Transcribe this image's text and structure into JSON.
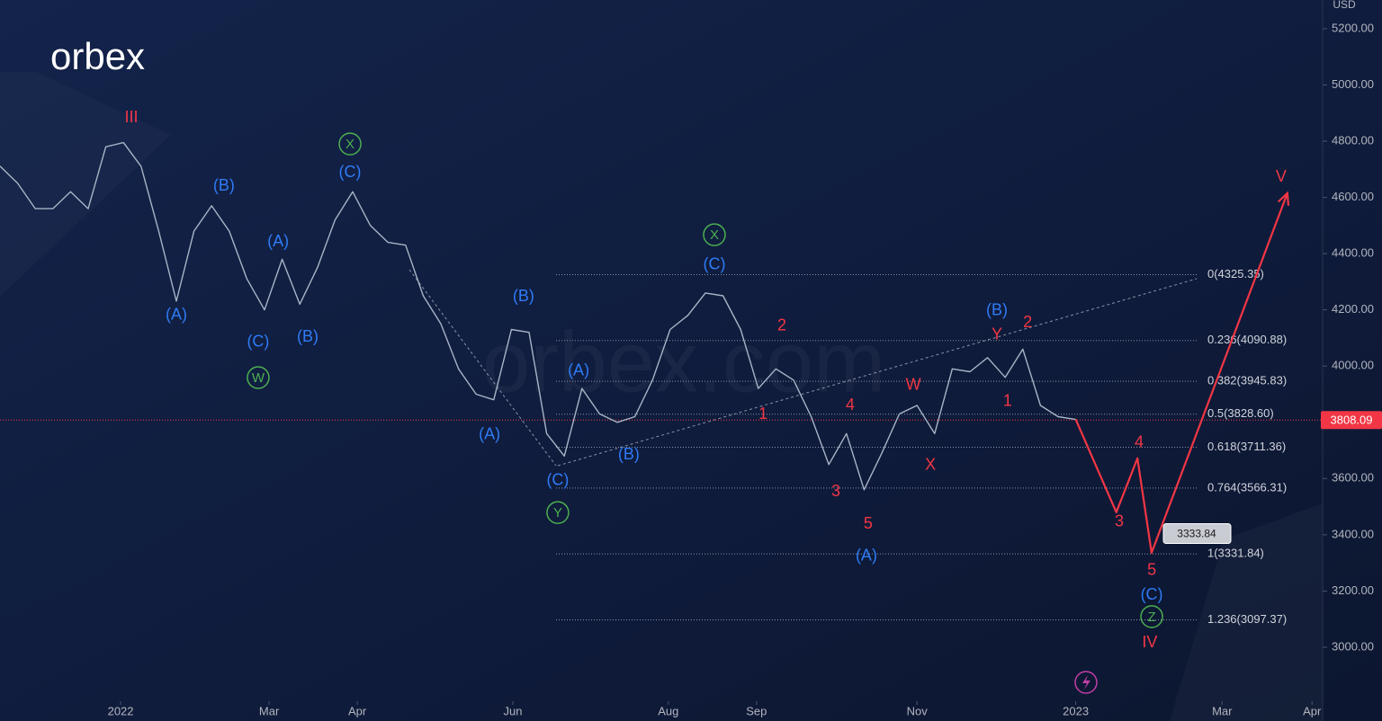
{
  "chart_data": {
    "type": "line",
    "logo": "orbex",
    "watermark": "orbex.com",
    "currency": "USD",
    "xlim": [
      0,
      75
    ],
    "ylim": [
      2808,
      5302
    ],
    "xticks": [
      {
        "value": 6.84,
        "label": "2022"
      },
      {
        "value": 15.26,
        "label": "Mar"
      },
      {
        "value": 20.26,
        "label": "Apr"
      },
      {
        "value": 29.08,
        "label": "Jun"
      },
      {
        "value": 37.9,
        "label": "Aug"
      },
      {
        "value": 42.9,
        "label": "Sep"
      },
      {
        "value": 52.0,
        "label": "Nov"
      },
      {
        "value": 61.0,
        "label": "2023"
      },
      {
        "value": 69.3,
        "label": "Mar"
      },
      {
        "value": 74.4,
        "label": "Apr"
      }
    ],
    "yticks": [
      {
        "value": 3000,
        "label": "3000.00"
      },
      {
        "value": 3200,
        "label": "3200.00"
      },
      {
        "value": 3400,
        "label": "3400.00"
      },
      {
        "value": 3600,
        "label": "3600.00"
      },
      {
        "value": 3800,
        "label": "3800.00"
      },
      {
        "value": 4000,
        "label": "4000.00"
      },
      {
        "value": 4200,
        "label": "4200.00"
      },
      {
        "value": 4400,
        "label": "4400.00"
      },
      {
        "value": 4600,
        "label": "4600.00"
      },
      {
        "value": 4800,
        "label": "4800.00"
      },
      {
        "value": 5000,
        "label": "5000.00"
      },
      {
        "value": 5200,
        "label": "5200.00"
      }
    ],
    "series": [
      {
        "color": "#a9b4c6",
        "x": [
          0,
          1,
          2,
          3,
          4,
          5,
          6,
          7,
          8,
          9,
          10,
          11,
          12,
          13,
          14,
          15,
          16,
          17,
          18,
          19,
          20,
          21,
          22,
          23,
          24,
          25,
          26,
          27,
          28,
          29,
          30,
          31,
          32,
          33,
          34,
          35,
          36,
          37,
          38,
          39,
          40,
          41,
          42,
          43,
          44,
          45,
          46,
          47,
          48,
          49,
          50,
          51,
          52,
          53,
          54,
          55,
          56,
          57,
          58,
          59,
          60,
          61
        ],
        "values": [
          4711,
          4650,
          4560,
          4560,
          4620,
          4560,
          4780,
          4795,
          4710,
          4480,
          4231,
          4480,
          4570,
          4480,
          4310,
          4200,
          4380,
          4220,
          4350,
          4520,
          4620,
          4500,
          4440,
          4430,
          4250,
          4150,
          3990,
          3900,
          3880,
          4130,
          4120,
          3760,
          3680,
          3920,
          3830,
          3800,
          3820,
          3950,
          4130,
          4180,
          4260,
          4250,
          4130,
          3920,
          3990,
          3950,
          3820,
          3650,
          3760,
          3560,
          3690,
          3830,
          3860,
          3760,
          3990,
          3980,
          4030,
          3960,
          4060,
          3860,
          3820,
          3810
        ]
      },
      {
        "color": "#f23645",
        "x": [
          61,
          63.3,
          64.5,
          65.3,
          73
        ],
        "values": [
          3810,
          3480,
          3672,
          3336,
          4615
        ]
      }
    ],
    "current_price": {
      "value": 3808.09,
      "label": "3808.09",
      "color": "#f23645"
    },
    "price_label": {
      "value": 3333.84,
      "label": "3333.84"
    },
    "fib_levels": [
      {
        "value": 4325.35,
        "label": "0(4325.35)"
      },
      {
        "value": 4090.88,
        "label": "0.236(4090.88)"
      },
      {
        "value": 3945.83,
        "label": "0.382(3945.83)"
      },
      {
        "value": 3828.6,
        "label": "0.5(3828.60)"
      },
      {
        "value": 3711.36,
        "label": "0.618(3711.36)"
      },
      {
        "value": 3566.31,
        "label": "0.764(3566.31)"
      },
      {
        "value": 3331.84,
        "label": "1(3331.84)"
      },
      {
        "value": 3097.37,
        "label": "1.236(3097.37)"
      }
    ],
    "annotations": [
      {
        "text": "III",
        "x": 7.45,
        "y": 4886,
        "color": "#f23645"
      },
      {
        "text": "(B)",
        "x": 12.7,
        "y": 4643,
        "color": "#2f7bf5"
      },
      {
        "text": "(A)",
        "x": 10.0,
        "y": 4183,
        "color": "#2f7bf5"
      },
      {
        "text": "(A)",
        "x": 15.77,
        "y": 4445,
        "color": "#2f7bf5"
      },
      {
        "text": "(C)",
        "x": 14.64,
        "y": 4087,
        "color": "#2f7bf5"
      },
      {
        "text": "(B)",
        "x": 17.45,
        "y": 4106,
        "color": "#2f7bf5"
      },
      {
        "text": "W",
        "x": 14.64,
        "y": 3959,
        "color": "#4caf50",
        "circle": true
      },
      {
        "text": "X",
        "x": 19.85,
        "y": 4790,
        "color": "#4caf50",
        "circle": true
      },
      {
        "text": "(C)",
        "x": 19.85,
        "y": 4691,
        "color": "#2f7bf5"
      },
      {
        "text": "(B)",
        "x": 29.69,
        "y": 4250,
        "color": "#2f7bf5"
      },
      {
        "text": "(A)",
        "x": 27.76,
        "y": 3758,
        "color": "#2f7bf5"
      },
      {
        "text": "(A)",
        "x": 32.81,
        "y": 3985,
        "color": "#2f7bf5"
      },
      {
        "text": "(C)",
        "x": 31.63,
        "y": 3595,
        "color": "#2f7bf5"
      },
      {
        "text": "Y",
        "x": 31.63,
        "y": 3479,
        "color": "#4caf50",
        "circle": true
      },
      {
        "text": "(B)",
        "x": 35.66,
        "y": 3687,
        "color": "#2f7bf5"
      },
      {
        "text": "X",
        "x": 40.51,
        "y": 4467,
        "color": "#4caf50",
        "circle": true
      },
      {
        "text": "(C)",
        "x": 40.51,
        "y": 4362,
        "color": "#2f7bf5"
      },
      {
        "text": "2",
        "x": 44.34,
        "y": 4145,
        "color": "#f23645"
      },
      {
        "text": "1",
        "x": 43.27,
        "y": 3831,
        "color": "#f23645"
      },
      {
        "text": "4",
        "x": 48.21,
        "y": 3863,
        "color": "#f23645"
      },
      {
        "text": "3",
        "x": 47.4,
        "y": 3556,
        "color": "#f23645"
      },
      {
        "text": "5",
        "x": 49.23,
        "y": 3441,
        "color": "#f23645"
      },
      {
        "text": "(A)",
        "x": 49.13,
        "y": 3326,
        "color": "#2f7bf5"
      },
      {
        "text": "W",
        "x": 51.79,
        "y": 3934,
        "color": "#f23645"
      },
      {
        "text": "X",
        "x": 52.76,
        "y": 3649,
        "color": "#f23645"
      },
      {
        "text": "(B)",
        "x": 56.53,
        "y": 4199,
        "color": "#2f7bf5"
      },
      {
        "text": "Y",
        "x": 56.53,
        "y": 4113,
        "color": "#f23645"
      },
      {
        "text": "2",
        "x": 58.27,
        "y": 4157,
        "color": "#f23645"
      },
      {
        "text": "1",
        "x": 57.14,
        "y": 3876,
        "color": "#f23645"
      },
      {
        "text": "4",
        "x": 64.59,
        "y": 3729,
        "color": "#f23645"
      },
      {
        "text": "3",
        "x": 63.47,
        "y": 3448,
        "color": "#f23645"
      },
      {
        "text": "5",
        "x": 65.31,
        "y": 3275,
        "color": "#f23645"
      },
      {
        "text": "(C)",
        "x": 65.31,
        "y": 3188,
        "color": "#2f7bf5"
      },
      {
        "text": "Z",
        "x": 65.31,
        "y": 3109,
        "color": "#4caf50",
        "circle": true
      },
      {
        "text": "IV",
        "x": 65.2,
        "y": 3019,
        "color": "#f23645"
      },
      {
        "text": "V",
        "x": 72.65,
        "y": 4675,
        "color": "#f23645"
      }
    ]
  }
}
